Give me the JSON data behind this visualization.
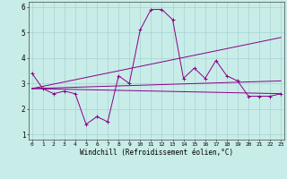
{
  "xlabel": "Windchill (Refroidissement éolien,°C)",
  "bg_color": "#c8ece8",
  "line_color": "#880088",
  "x": [
    0,
    1,
    2,
    3,
    4,
    5,
    6,
    7,
    8,
    9,
    10,
    11,
    12,
    13,
    14,
    15,
    16,
    17,
    18,
    19,
    20,
    21,
    22,
    23
  ],
  "line1": [
    3.4,
    2.8,
    2.6,
    2.7,
    2.6,
    1.4,
    1.7,
    1.5,
    3.3,
    3.0,
    5.1,
    5.9,
    5.9,
    5.5,
    3.2,
    3.6,
    3.2,
    3.9,
    3.3,
    3.1,
    2.5,
    2.5,
    2.5,
    2.6
  ],
  "line2_x": [
    0,
    23
  ],
  "line2_y": [
    2.8,
    2.6
  ],
  "line3_x": [
    0,
    23
  ],
  "line3_y": [
    2.8,
    4.8
  ],
  "line4_x": [
    0,
    23
  ],
  "line4_y": [
    2.8,
    3.1
  ],
  "ylim": [
    0.8,
    6.2
  ],
  "xlim": [
    -0.3,
    23.3
  ],
  "yticks": [
    1,
    2,
    3,
    4,
    5,
    6
  ],
  "xticks": [
    0,
    1,
    2,
    3,
    4,
    5,
    6,
    7,
    8,
    9,
    10,
    11,
    12,
    13,
    14,
    15,
    16,
    17,
    18,
    19,
    20,
    21,
    22,
    23
  ],
  "xlabel_fontsize": 5.5,
  "tick_fontsize": 4.5,
  "ytick_fontsize": 5.5,
  "grid_color": "#a0cccc",
  "marker_size": 2.5,
  "line_width": 0.7
}
